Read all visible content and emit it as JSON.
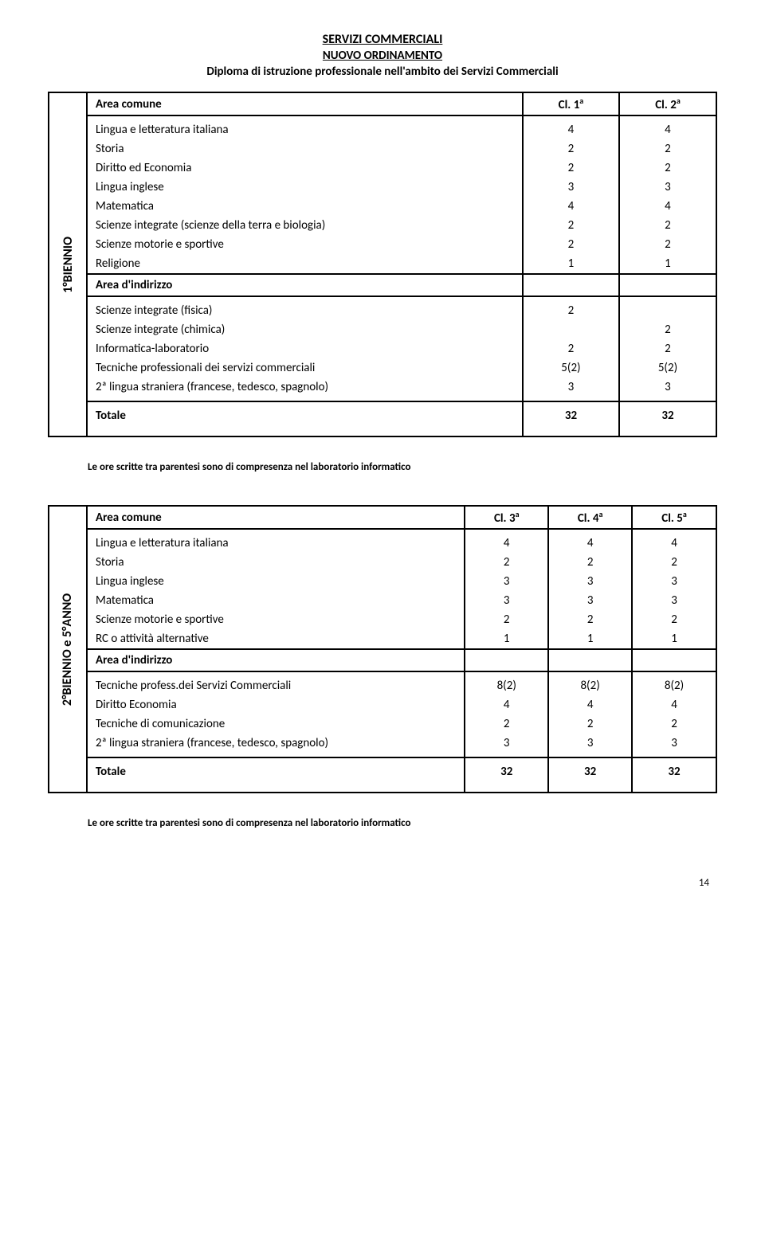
{
  "page": {
    "title": "SERVIZI COMMERCIALI",
    "subtitle": "NUOVO ORDINAMENTO",
    "description": "Diploma di istruzione professionale nell'ambito dei Servizi Commerciali",
    "number": "14"
  },
  "footnote": "Le ore scritte tra parentesi sono di compresenza nel laboratorio informatico",
  "block1": {
    "label": "1°BIENNIO",
    "header": {
      "area": "Area comune",
      "c1": "Cl. 1",
      "c2": "Cl. 2",
      "sup": "a"
    },
    "section1_rows": [
      {
        "label": "Lingua e letteratura italiana",
        "c1": "4",
        "c2": "4"
      },
      {
        "label": "Storia",
        "c1": "2",
        "c2": "2"
      },
      {
        "label": "Diritto ed Economia",
        "c1": "2",
        "c2": "2"
      },
      {
        "label": "Lingua inglese",
        "c1": "3",
        "c2": "3"
      },
      {
        "label": "Matematica",
        "c1": "4",
        "c2": "4"
      },
      {
        "label": "Scienze integrate (scienze della terra e biologia)",
        "c1": "2",
        "c2": "2"
      },
      {
        "label": "Scienze motorie e sportive",
        "c1": "2",
        "c2": "2"
      },
      {
        "label": "Religione",
        "c1": "1",
        "c2": "1"
      }
    ],
    "section2_label": "Area d'indirizzo",
    "section2_rows": [
      {
        "label": "Scienze integrate (fisica)",
        "c1": "2",
        "c2": ""
      },
      {
        "label": "Scienze integrate (chimica)",
        "c1": "",
        "c2": "2"
      },
      {
        "label": "Informatica-laboratorio",
        "c1": "2",
        "c2": "2"
      },
      {
        "label": "Tecniche professionali dei servizi commerciali",
        "c1": "5(2)",
        "c2": "5(2)"
      },
      {
        "label": "2ª lingua straniera (francese, tedesco, spagnolo)",
        "c1": "3",
        "c2": "3"
      }
    ],
    "total": {
      "label": "Totale",
      "c1": "32",
      "c2": "32"
    }
  },
  "block2": {
    "label": "2°BIENNIO e 5°ANNO",
    "header": {
      "area": "Area comune",
      "c1": "Cl. 3",
      "c2": "Cl. 4",
      "c3": "Cl. 5",
      "sup": "a"
    },
    "section1_rows": [
      {
        "label": "Lingua e letteratura italiana",
        "c1": "4",
        "c2": "4",
        "c3": "4"
      },
      {
        "label": "Storia",
        "c1": "2",
        "c2": "2",
        "c3": "2"
      },
      {
        "label": "Lingua inglese",
        "c1": "3",
        "c2": "3",
        "c3": "3"
      },
      {
        "label": "Matematica",
        "c1": "3",
        "c2": "3",
        "c3": "3"
      },
      {
        "label": "Scienze motorie e sportive",
        "c1": "2",
        "c2": "2",
        "c3": "2"
      },
      {
        "label": "RC o attività alternative",
        "c1": "1",
        "c2": "1",
        "c3": "1"
      }
    ],
    "section2_label": "Area d'indirizzo",
    "section2_rows": [
      {
        "label": "Tecniche profess.dei Servizi Commerciali",
        "c1": "8(2)",
        "c2": "8(2)",
        "c3": "8(2)"
      },
      {
        "label": "Diritto Economia",
        "c1": "4",
        "c2": "4",
        "c3": "4"
      },
      {
        "label": "Tecniche di comunicazione",
        "c1": "2",
        "c2": "2",
        "c3": "2"
      },
      {
        "label": "2ª lingua straniera (francese, tedesco, spagnolo)",
        "c1": "3",
        "c2": "3",
        "c3": "3"
      }
    ],
    "total": {
      "label": "Totale",
      "c1": "32",
      "c2": "32",
      "c3": "32"
    }
  }
}
